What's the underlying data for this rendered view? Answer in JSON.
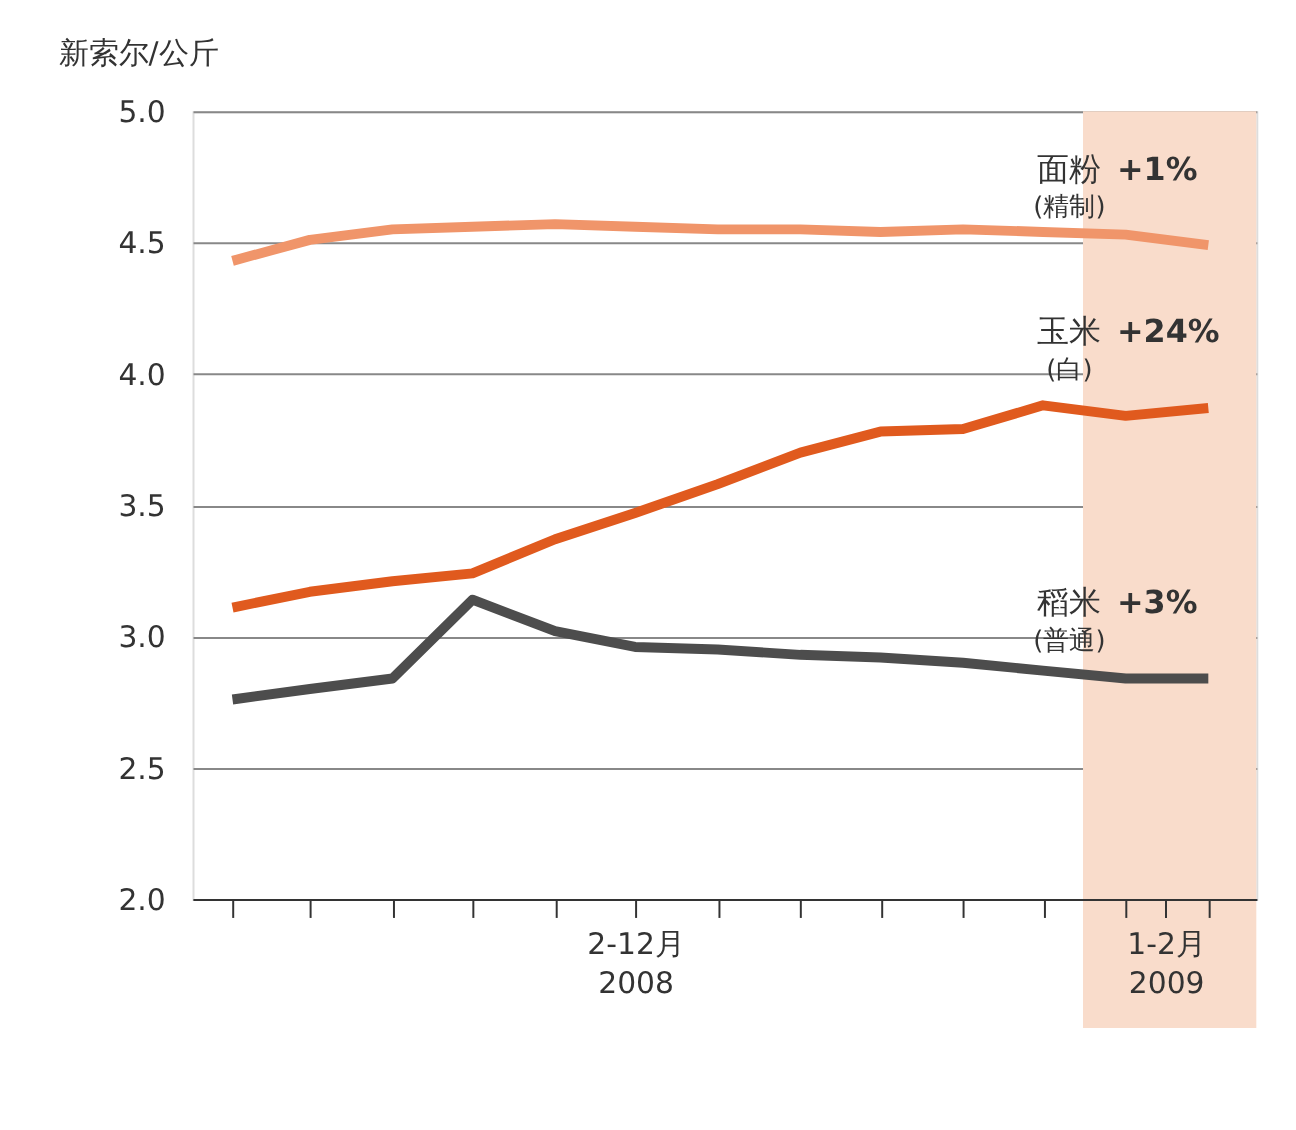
{
  "chart_data": {
    "type": "line",
    "ylabel": "新索尔/公斤",
    "x": [
      "2008-02",
      "2008-03",
      "2008-04",
      "2008-05",
      "2008-06",
      "2008-07",
      "2008-08",
      "2008-09",
      "2008-10",
      "2008-11",
      "2008-12",
      "2009-01",
      "2009-02"
    ],
    "series": [
      {
        "name": "面粉",
        "color": "#f0956a",
        "values": [
          4.43,
          4.51,
          4.55,
          4.56,
          4.57,
          4.56,
          4.55,
          4.55,
          4.54,
          4.55,
          4.54,
          4.53,
          4.49
        ]
      },
      {
        "name": "玉米",
        "color": "#e05a1e",
        "values": [
          3.11,
          3.17,
          3.21,
          3.24,
          3.37,
          3.47,
          3.58,
          3.7,
          3.78,
          3.79,
          3.88,
          3.84,
          3.87
        ]
      },
      {
        "name": "稻米",
        "color": "#4d4d4d",
        "values": [
          2.76,
          2.8,
          2.84,
          3.14,
          3.02,
          2.96,
          2.95,
          2.93,
          2.92,
          2.9,
          2.87,
          2.84,
          2.84
        ]
      }
    ],
    "annotations": [
      "+1%",
      "(精制)",
      "+24%",
      "(白)",
      "+3%",
      "(普通)"
    ],
    "bands": [
      {
        "axis": "x",
        "from": "2008-12-16",
        "to": "2009-02-19",
        "color": "#f9dccb"
      }
    ],
    "xlim": [
      "2008-01-17",
      "2009-02-19"
    ],
    "xticks": [
      {
        "value": "2008-02",
        "label": null
      },
      {
        "value": "2008-03",
        "label": null
      },
      {
        "value": "2008-04",
        "label": null
      },
      {
        "value": "2008-05",
        "label": null
      },
      {
        "value": "2008-06",
        "label": null
      },
      {
        "value": "2008-07",
        "label": "2-12月 2008"
      },
      {
        "value": "2008-08",
        "label": null
      },
      {
        "value": "2008-09",
        "label": null
      },
      {
        "value": "2008-10",
        "label": null
      },
      {
        "value": "2008-11",
        "label": null
      },
      {
        "value": "2008-12",
        "label": null
      },
      {
        "value": "2009-01",
        "label": null
      },
      {
        "value": "2009-01-16",
        "label": "1-2月 2009"
      },
      {
        "value": "2009-02",
        "label": null
      }
    ],
    "ylim": [
      2.0,
      5.0
    ],
    "yticks": [
      {
        "value": 2,
        "label": "2.0"
      },
      {
        "value": 2.5,
        "label": "2.5"
      },
      {
        "value": 3,
        "label": "3.0"
      },
      {
        "value": 3.5,
        "label": "3.5"
      },
      {
        "value": 4,
        "label": "4.0"
      },
      {
        "value": 4.5,
        "label": "4.5"
      },
      {
        "value": 5,
        "label": "5.0"
      }
    ],
    "grid": "y",
    "marker": "none",
    "line_style": "solid"
  }
}
